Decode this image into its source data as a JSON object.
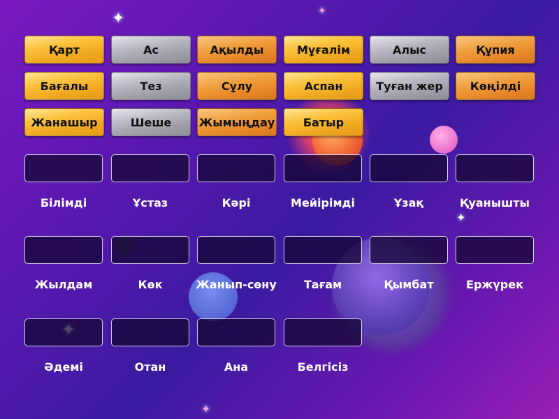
{
  "tiles": [
    {
      "label": "Қарт",
      "color": "yellow"
    },
    {
      "label": "Ас",
      "color": "gray"
    },
    {
      "label": "Ақылды",
      "color": "orange"
    },
    {
      "label": "Мұғалім",
      "color": "yellow"
    },
    {
      "label": "Алыс",
      "color": "gray"
    },
    {
      "label": "Құпия",
      "color": "orange"
    },
    {
      "label": "Бағалы",
      "color": "yellow"
    },
    {
      "label": "Тез",
      "color": "gray"
    },
    {
      "label": "Сұлу",
      "color": "orange"
    },
    {
      "label": "Аспан",
      "color": "yellow"
    },
    {
      "label": "Туған жер",
      "color": "gray"
    },
    {
      "label": "Көңілді",
      "color": "orange"
    },
    {
      "label": "Жанашыр",
      "color": "yellow"
    },
    {
      "label": "Шеше",
      "color": "gray"
    },
    {
      "label": "Жымыңдау",
      "color": "orange"
    },
    {
      "label": "Батыр",
      "color": "yellow"
    }
  ],
  "targets": [
    "Білімді",
    "Ұстаз",
    "Кәрі",
    "Мейірімді",
    "Ұзақ",
    "Қуанышты",
    "Жылдам",
    "Көк",
    "Жанып-сөну",
    "Тағам",
    "Қымбат",
    "Ержүрек",
    "Әдемі",
    "Отан",
    "Ана",
    "Белгісіз"
  ],
  "colors": {
    "yellow": "#fbc23c",
    "gray": "#b8b6c0",
    "orange": "#f0a040"
  }
}
